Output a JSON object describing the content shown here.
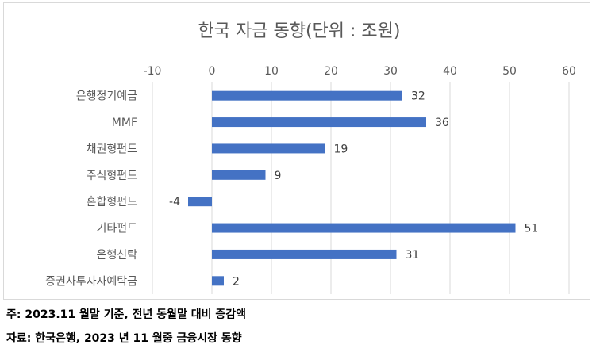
{
  "chart_data": {
    "type": "bar",
    "orientation": "horizontal",
    "title": "한국 자금 동향(단위 : 조원)",
    "categories": [
      "은행정기예금",
      "MMF",
      "채권형펀드",
      "주식형펀드",
      "혼합형펀드",
      "기타펀드",
      "은행신탁",
      "증권사투자자예탁금"
    ],
    "values": [
      32,
      36,
      19,
      9,
      -4,
      51,
      31,
      2
    ],
    "xlim": [
      -10,
      60
    ],
    "xticks": [
      "-10",
      "0",
      "10",
      "20",
      "30",
      "40",
      "50",
      "60"
    ],
    "axis_position": "top",
    "grid": true,
    "legend": "none",
    "bar_color": "#4472c4"
  },
  "notes": {
    "line1": "주: 2023.11 월말 기준, 전년 동월말 대비 증감액",
    "line2": "자료: 한국은행, 2023 년 11 월중 금융시장 동향"
  }
}
